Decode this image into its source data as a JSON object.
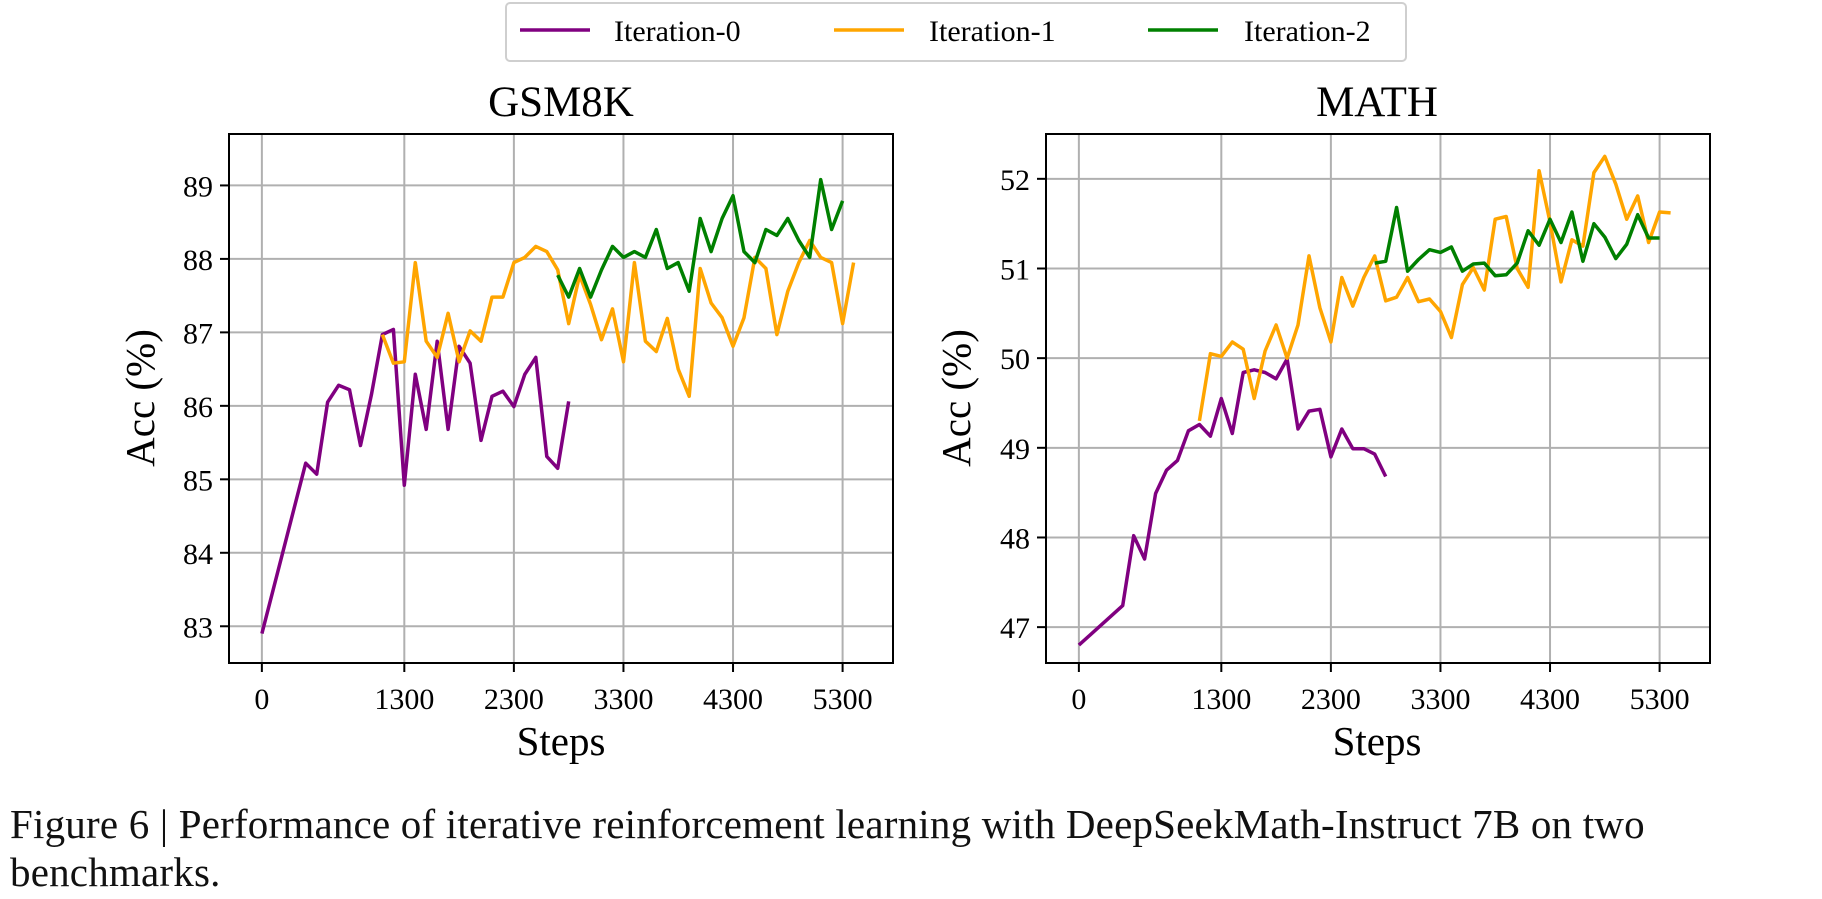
{
  "legend": {
    "items": [
      {
        "label": "Iteration-0",
        "color": "#800080"
      },
      {
        "label": "Iteration-1",
        "color": "#FFA500"
      },
      {
        "label": "Iteration-2",
        "color": "#008000"
      }
    ]
  },
  "caption": {
    "text": "Figure 6 | Performance of iterative reinforcement learning with DeepSeekMath-Instruct 7B on two benchmarks."
  },
  "chart_data": [
    {
      "type": "line",
      "title": "GSM8K",
      "xlabel": "Steps",
      "ylabel": "Acc (%)",
      "xlim": [
        -300,
        5760
      ],
      "ylim": [
        82.5,
        89.7
      ],
      "xticks": [
        0,
        1300,
        2300,
        3300,
        4300,
        5300
      ],
      "yticks": [
        83,
        84,
        85,
        86,
        87,
        88,
        89
      ],
      "grid": true,
      "series": [
        {
          "name": "Iteration-0",
          "color": "#800080",
          "x": [
            0,
            400,
            500,
            600,
            700,
            800,
            900,
            1000,
            1100,
            1200,
            1300,
            1400,
            1500,
            1600,
            1700,
            1800,
            1900,
            2000,
            2100,
            2200,
            2300,
            2400,
            2500,
            2600,
            2700,
            2800
          ],
          "y": [
            82.9,
            85.22,
            85.07,
            86.05,
            86.28,
            86.22,
            85.46,
            86.15,
            86.97,
            87.04,
            84.92,
            86.43,
            85.68,
            86.88,
            85.68,
            86.81,
            86.58,
            85.53,
            86.13,
            86.2,
            85.99,
            86.43,
            86.66,
            85.31,
            85.15,
            86.06
          ]
        },
        {
          "name": "Iteration-1",
          "color": "#FFA500",
          "x": [
            1100,
            1200,
            1300,
            1400,
            1500,
            1600,
            1700,
            1800,
            1900,
            2000,
            2100,
            2200,
            2300,
            2400,
            2500,
            2600,
            2700,
            2800,
            2900,
            3000,
            3100,
            3200,
            3300,
            3400,
            3500,
            3600,
            3700,
            3800,
            3900,
            4000,
            4100,
            4200,
            4300,
            4400,
            4500,
            4600,
            4700,
            4800,
            4900,
            5000,
            5100,
            5200,
            5300,
            5400
          ],
          "y": [
            86.97,
            86.58,
            86.6,
            87.95,
            86.88,
            86.66,
            87.26,
            86.6,
            87.02,
            86.88,
            87.48,
            87.48,
            87.95,
            88.02,
            88.17,
            88.1,
            87.85,
            87.12,
            87.78,
            87.38,
            86.9,
            87.32,
            86.6,
            87.95,
            86.88,
            86.74,
            87.19,
            86.5,
            86.13,
            87.87,
            87.4,
            87.2,
            86.81,
            87.2,
            88.02,
            87.87,
            86.97,
            87.56,
            87.95,
            88.25,
            88.02,
            87.95,
            87.12,
            87.95
          ]
        },
        {
          "name": "Iteration-2",
          "color": "#008000",
          "x": [
            2700,
            2800,
            2900,
            3000,
            3100,
            3200,
            3300,
            3400,
            3500,
            3600,
            3700,
            3800,
            3900,
            4000,
            4100,
            4200,
            4300,
            4400,
            4500,
            4600,
            4700,
            4800,
            4900,
            5000,
            5100,
            5200,
            5300
          ],
          "y": [
            87.78,
            87.48,
            87.87,
            87.48,
            87.85,
            88.17,
            88.02,
            88.1,
            88.02,
            88.4,
            87.87,
            87.95,
            87.56,
            88.55,
            88.1,
            88.55,
            88.86,
            88.1,
            87.95,
            88.4,
            88.32,
            88.55,
            88.25,
            88.02,
            89.08,
            88.4,
            88.79
          ]
        }
      ]
    },
    {
      "type": "line",
      "title": "MATH",
      "xlabel": "Steps",
      "ylabel": "Acc (%)",
      "xlim": [
        -300,
        5760
      ],
      "ylim": [
        46.6,
        52.5
      ],
      "xticks": [
        0,
        1300,
        2300,
        3300,
        4300,
        5300
      ],
      "yticks": [
        47,
        48,
        49,
        50,
        51,
        52
      ],
      "grid": true,
      "series": [
        {
          "name": "Iteration-0",
          "color": "#800080",
          "x": [
            0,
            400,
            500,
            600,
            700,
            800,
            900,
            1000,
            1100,
            1200,
            1300,
            1400,
            1500,
            1600,
            1700,
            1800,
            1900,
            2000,
            2100,
            2200,
            2300,
            2400,
            2500,
            2600,
            2700,
            2800
          ],
          "y": [
            46.8,
            47.24,
            48.02,
            47.76,
            48.49,
            48.75,
            48.86,
            49.19,
            49.26,
            49.13,
            49.55,
            49.16,
            49.84,
            49.87,
            49.84,
            49.77,
            49.99,
            49.21,
            49.41,
            49.43,
            48.9,
            49.21,
            48.99,
            48.99,
            48.93,
            48.68
          ]
        },
        {
          "name": "Iteration-1",
          "color": "#FFA500",
          "x": [
            1100,
            1200,
            1300,
            1400,
            1500,
            1600,
            1700,
            1800,
            1900,
            2000,
            2100,
            2200,
            2300,
            2400,
            2500,
            2600,
            2700,
            2800,
            2900,
            3000,
            3100,
            3200,
            3300,
            3400,
            3500,
            3600,
            3700,
            3800,
            3900,
            4000,
            4100,
            4200,
            4300,
            4400,
            4500,
            4600,
            4700,
            4800,
            4900,
            5000,
            5100,
            5200,
            5300,
            5400
          ],
          "y": [
            49.3,
            50.05,
            50.02,
            50.18,
            50.1,
            49.55,
            50.08,
            50.37,
            50.0,
            50.37,
            51.14,
            50.56,
            50.18,
            50.9,
            50.58,
            50.9,
            51.14,
            50.64,
            50.68,
            50.9,
            50.63,
            50.66,
            50.52,
            50.23,
            50.82,
            51.01,
            50.76,
            51.55,
            51.58,
            51.0,
            50.79,
            52.09,
            51.52,
            50.85,
            51.32,
            51.25,
            52.07,
            52.25,
            51.94,
            51.55,
            51.81,
            51.29,
            51.63,
            51.62
          ]
        },
        {
          "name": "Iteration-2",
          "color": "#008000",
          "x": [
            2700,
            2800,
            2900,
            3000,
            3100,
            3200,
            3300,
            3400,
            3500,
            3600,
            3700,
            3800,
            3900,
            4000,
            4100,
            4200,
            4300,
            4400,
            4500,
            4600,
            4700,
            4800,
            4900,
            5000,
            5100,
            5200,
            5300
          ],
          "y": [
            51.06,
            51.08,
            51.68,
            50.97,
            51.1,
            51.21,
            51.18,
            51.24,
            50.97,
            51.05,
            51.06,
            50.92,
            50.93,
            51.06,
            51.42,
            51.26,
            51.55,
            51.29,
            51.63,
            51.08,
            51.5,
            51.35,
            51.11,
            51.27,
            51.6,
            51.34,
            51.34
          ]
        }
      ]
    }
  ]
}
